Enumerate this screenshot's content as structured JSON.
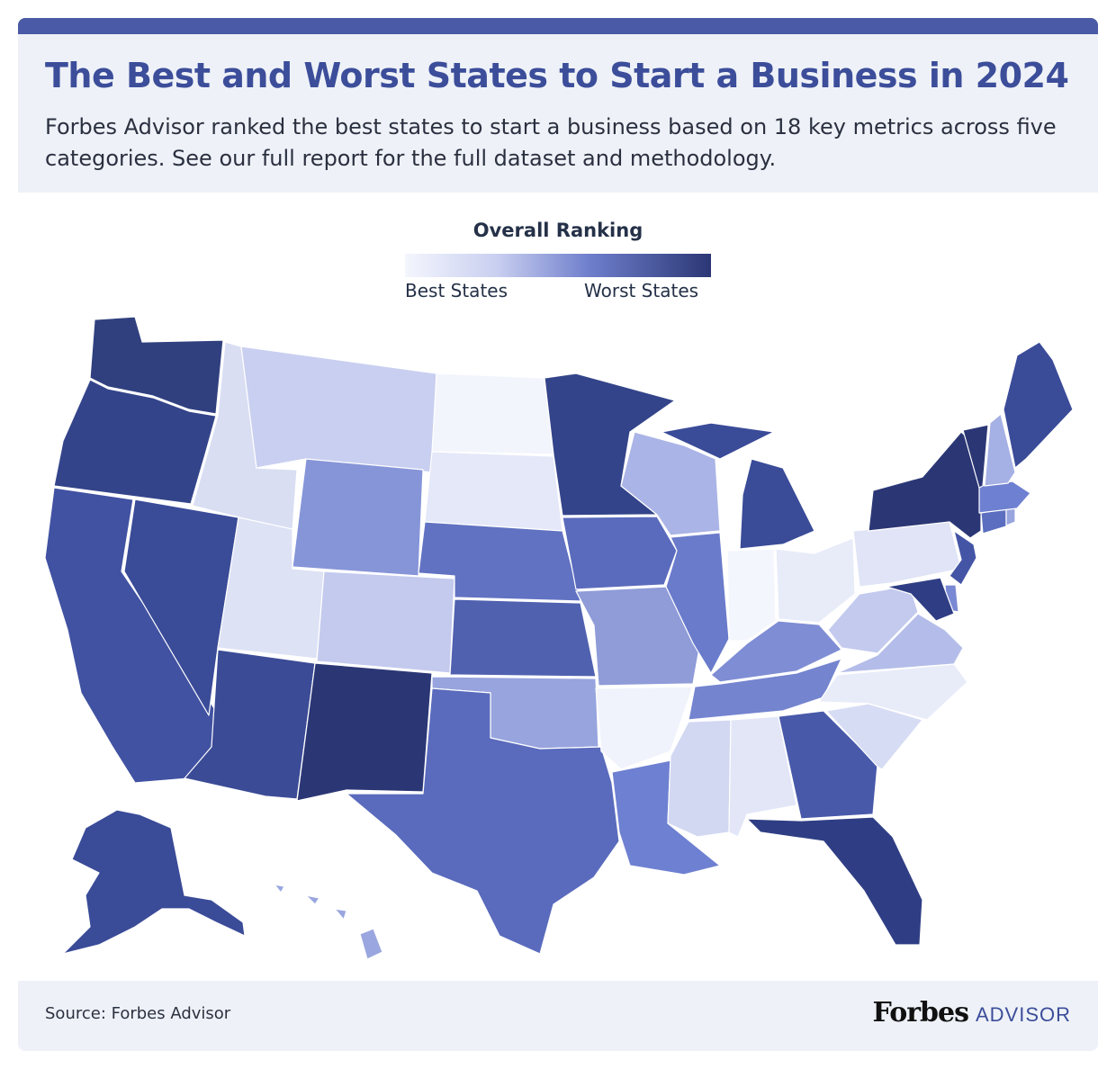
{
  "header": {
    "title": "The Best and Worst States to Start a Business in 2024",
    "subtitle": "Forbes Advisor ranked the best states to start a business based on 18 key metrics across five categories. See our full report for the full dataset and methodology."
  },
  "legend": {
    "title": "Overall Ranking",
    "best_label": "Best States",
    "worst_label": "Worst States"
  },
  "colors": {
    "header_bar": "#4a5aa6",
    "title": "#3c4d9a",
    "panel_bg": "#eef2f8",
    "scale": [
      "#f4f6fd",
      "#c9cff0",
      "#6f7fcc",
      "#2b3775"
    ]
  },
  "footer": {
    "source": "Source: Forbes Advisor",
    "brand_main": "Forbes",
    "brand_sub": "ADVISOR"
  },
  "map_data": {
    "scale": "ranking shading: lighter = best states, darker = worst states",
    "state_shading": {
      "Washington": "#30407f",
      "Oregon": "#34448a",
      "California": "#4152a2",
      "Nevada": "#3a4b98",
      "Idaho": "#d9def3",
      "Montana": "#c9cff0",
      "Wyoming": "#8695d8",
      "Utah": "#dde2f5",
      "Colorado": "#c3caee",
      "Arizona": "#3b4b96",
      "New Mexico": "#2b3775",
      "North Dakota": "#f3f5fd",
      "South Dakota": "#e4e8f8",
      "Nebraska": "#6172c2",
      "Kansas": "#5061b0",
      "Oklahoma": "#97a4de",
      "Texas": "#5a6bbd",
      "Minnesota": "#34448a",
      "Iowa": "#5a6bbd",
      "Missouri": "#8f9cd8",
      "Arkansas": "#f1f3fc",
      "Louisiana": "#6e80d1",
      "Wisconsin": "#aab4e6",
      "Illinois": "#6a7bcb",
      "Michigan": "#3a4b98",
      "Indiana": "#f4f6fd",
      "Ohio": "#e8ecf9",
      "Kentucky": "#7e8dd4",
      "Tennessee": "#7484cf",
      "Mississippi": "#d2d8f2",
      "Alabama": "#e2e6f7",
      "Georgia": "#4859aa",
      "Florida": "#2f3e84",
      "South Carolina": "#d6dcf3",
      "North Carolina": "#e8ecf9",
      "Virginia": "#b4bde9",
      "West Virginia": "#c3caee",
      "Pennsylvania": "#e0e4f6",
      "New York": "#2b3775",
      "Vermont": "#2b3775",
      "New Hampshire": "#a5b0e4",
      "Maine": "#3a4b98",
      "Massachusetts": "#6e80d1",
      "Connecticut": "#5c6ec0",
      "Rhode Island": "#98a5df",
      "New Jersey": "#4455a6",
      "Delaware": "#7a89d3",
      "Maryland": "#2f3e84",
      "Alaska": "#3a4b98",
      "Hawaii": "#9aa6df"
    }
  }
}
